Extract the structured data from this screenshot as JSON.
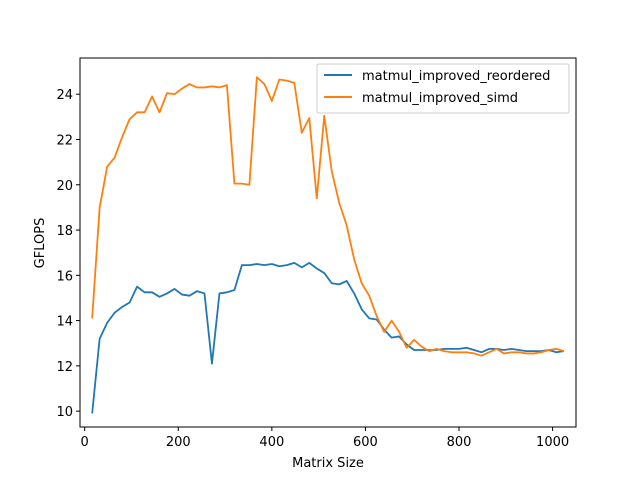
{
  "chart_data": {
    "type": "line",
    "xlabel": "Matrix Size",
    "ylabel": "GFLOPS",
    "xlim": [
      -10,
      1050
    ],
    "ylim": [
      9.3,
      25.6
    ],
    "xticks": [
      0,
      200,
      400,
      600,
      800,
      1000
    ],
    "yticks": [
      10,
      12,
      14,
      16,
      18,
      20,
      22,
      24
    ],
    "grid": false,
    "legend_position": "top-right",
    "colors": {
      "series1": "#1f77b4",
      "series2": "#ff7f0e",
      "axes": "#000000"
    },
    "x": [
      16,
      32,
      48,
      64,
      80,
      96,
      112,
      128,
      144,
      160,
      176,
      192,
      208,
      224,
      240,
      256,
      272,
      288,
      304,
      320,
      336,
      352,
      368,
      384,
      400,
      416,
      432,
      448,
      464,
      480,
      496,
      512,
      528,
      544,
      560,
      576,
      592,
      608,
      624,
      640,
      656,
      672,
      688,
      704,
      720,
      736,
      752,
      768,
      784,
      800,
      816,
      832,
      848,
      864,
      880,
      896,
      912,
      928,
      944,
      960,
      976,
      992,
      1008,
      1024
    ],
    "series": [
      {
        "name": "matmul_improved_reordered",
        "values": [
          9.9,
          13.2,
          13.9,
          14.35,
          14.6,
          14.8,
          15.5,
          15.25,
          15.25,
          15.05,
          15.2,
          15.4,
          15.15,
          15.1,
          15.3,
          15.2,
          12.1,
          15.2,
          15.25,
          15.35,
          16.45,
          16.45,
          16.5,
          16.45,
          16.5,
          16.4,
          16.45,
          16.55,
          16.35,
          16.55,
          16.3,
          16.1,
          15.65,
          15.6,
          15.75,
          15.2,
          14.5,
          14.1,
          14.05,
          13.6,
          13.25,
          13.3,
          12.95,
          12.7,
          12.7,
          12.7,
          12.7,
          12.75,
          12.75,
          12.75,
          12.8,
          12.7,
          12.6,
          12.75,
          12.75,
          12.7,
          12.75,
          12.7,
          12.65,
          12.65,
          12.65,
          12.7,
          12.6,
          12.65
        ]
      },
      {
        "name": "matmul_improved_simd",
        "values": [
          14.1,
          19,
          20.8,
          21.2,
          22.1,
          22.9,
          23.2,
          23.2,
          23.9,
          23.2,
          24.05,
          24,
          24.25,
          24.45,
          24.3,
          24.3,
          24.35,
          24.3,
          24.4,
          20.05,
          20.05,
          20,
          24.75,
          24.45,
          23.7,
          24.65,
          24.6,
          24.5,
          22.3,
          22.95,
          19.4,
          23.05,
          20.6,
          19.2,
          18.2,
          16.7,
          15.65,
          15.1,
          14.2,
          13.5,
          14,
          13.5,
          12.8,
          13.15,
          12.85,
          12.65,
          12.75,
          12.65,
          12.6,
          12.6,
          12.6,
          12.55,
          12.45,
          12.6,
          12.75,
          12.55,
          12.6,
          12.6,
          12.55,
          12.55,
          12.6,
          12.7,
          12.75,
          12.65
        ]
      }
    ]
  }
}
